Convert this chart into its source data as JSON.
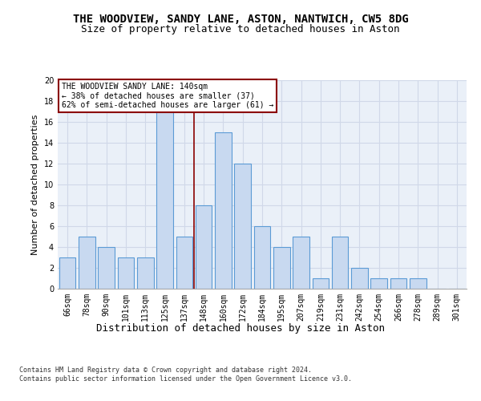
{
  "title": "THE WOODVIEW, SANDY LANE, ASTON, NANTWICH, CW5 8DG",
  "subtitle": "Size of property relative to detached houses in Aston",
  "xlabel": "Distribution of detached houses by size in Aston",
  "ylabel": "Number of detached properties",
  "categories": [
    "66sqm",
    "78sqm",
    "90sqm",
    "101sqm",
    "113sqm",
    "125sqm",
    "137sqm",
    "148sqm",
    "160sqm",
    "172sqm",
    "184sqm",
    "195sqm",
    "207sqm",
    "219sqm",
    "231sqm",
    "242sqm",
    "254sqm",
    "266sqm",
    "278sqm",
    "289sqm",
    "301sqm"
  ],
  "values": [
    3,
    5,
    4,
    3,
    3,
    17,
    5,
    8,
    15,
    12,
    6,
    4,
    5,
    1,
    5,
    2,
    1,
    1,
    1,
    0,
    0
  ],
  "bar_color": "#c8d9f0",
  "bar_edge_color": "#5b9bd5",
  "vline_color": "#8b0000",
  "annotation_text": "THE WOODVIEW SANDY LANE: 140sqm\n← 38% of detached houses are smaller (37)\n62% of semi-detached houses are larger (61) →",
  "annotation_box_color": "#ffffff",
  "annotation_box_edge": "#8b0000",
  "ylim": [
    0,
    20
  ],
  "yticks": [
    0,
    2,
    4,
    6,
    8,
    10,
    12,
    14,
    16,
    18,
    20
  ],
  "grid_color": "#d0d8e8",
  "background_color": "#eaf0f8",
  "footer": "Contains HM Land Registry data © Crown copyright and database right 2024.\nContains public sector information licensed under the Open Government Licence v3.0.",
  "title_fontsize": 10,
  "subtitle_fontsize": 9,
  "xlabel_fontsize": 9,
  "ylabel_fontsize": 8,
  "tick_fontsize": 7,
  "annotation_fontsize": 7,
  "footer_fontsize": 6
}
